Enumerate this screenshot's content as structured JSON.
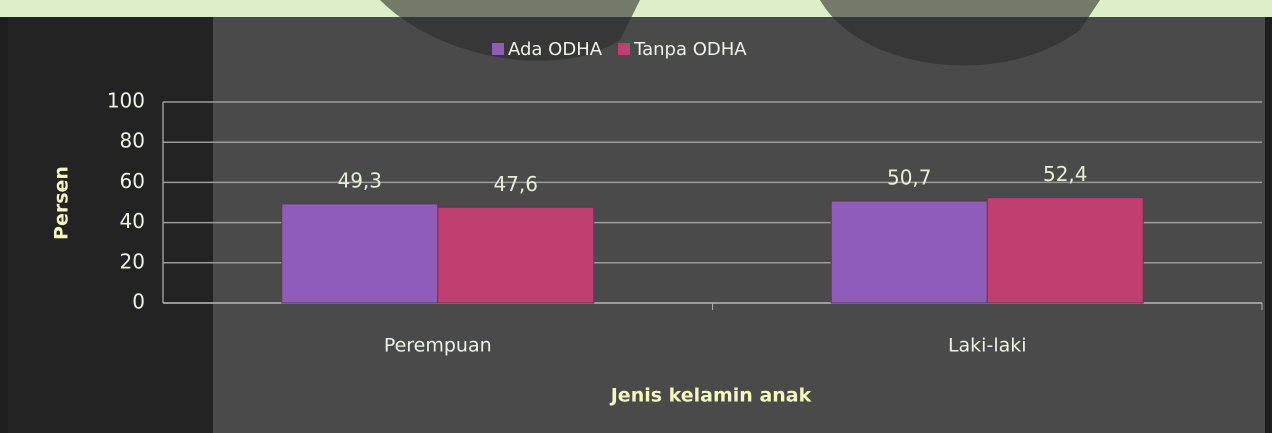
{
  "chart_data": {
    "type": "bar",
    "categories": [
      "Perempuan",
      "Laki-laki"
    ],
    "series": [
      {
        "name": "Ada ODHA",
        "color": "#8f5cb8",
        "values": [
          49.3,
          50.7
        ],
        "value_labels": [
          "49,3",
          "50,7"
        ]
      },
      {
        "name": "Tanpa ODHA",
        "color": "#bf3f70",
        "values": [
          47.6,
          52.4
        ],
        "value_labels": [
          "47,6",
          "52,4"
        ]
      }
    ],
    "ylim": [
      0,
      100
    ],
    "yticks": [
      0,
      20,
      40,
      60,
      80,
      100
    ],
    "grid": true,
    "ylabel": "Persen",
    "xlabel": "Jenis kelamin anak",
    "legend": "top"
  }
}
